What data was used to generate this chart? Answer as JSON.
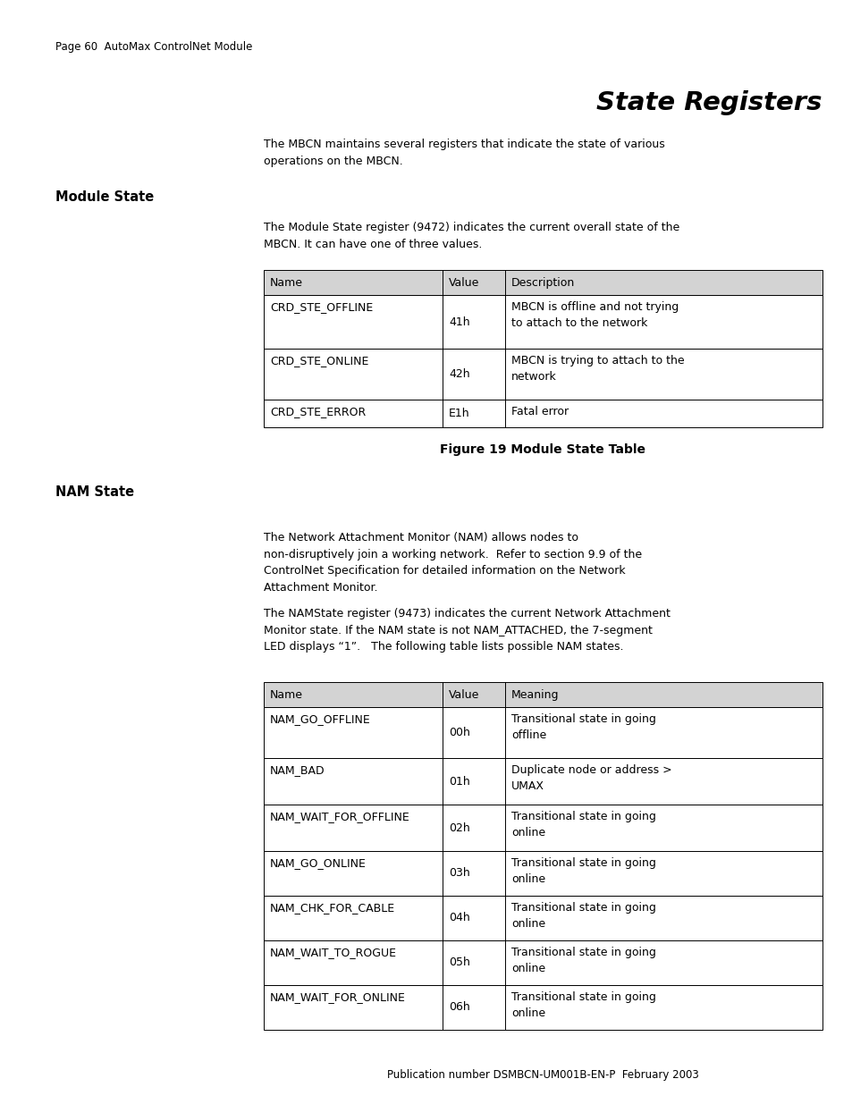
{
  "page_header": "Page 60  AutoMax ControlNet Module",
  "title": "State Registers",
  "intro_text": "The MBCN maintains several registers that indicate the state of various\noperations on the MBCN.",
  "section1_header": "Module State",
  "section1_text": "The Module State register (9472) indicates the current overall state of the\nMBCN. It can have one of three values.",
  "table1_caption": "Figure 19 Module State Table",
  "table1_headers": [
    "Name",
    "Value",
    "Description"
  ],
  "table1_rows": [
    [
      "CRD_STE_OFFLINE",
      "41h",
      "MBCN is offline and not trying\nto attach to the network"
    ],
    [
      "CRD_STE_ONLINE",
      "42h",
      "MBCN is trying to attach to the\nnetwork"
    ],
    [
      "CRD_STE_ERROR",
      "E1h",
      "Fatal error"
    ]
  ],
  "section2_header": "NAM State",
  "section2_text1": "The Network Attachment Monitor (NAM) allows nodes to\nnon-disruptively join a working network.  Refer to section 9.9 of the\nControlNet Specification for detailed information on the Network\nAttachment Monitor.",
  "section2_text2": "The NAMState register (9473) indicates the current Network Attachment\nMonitor state. If the NAM state is not NAM_ATTACHED, the 7-segment\nLED displays “1”.   The following table lists possible NAM states.",
  "table2_headers": [
    "Name",
    "Value",
    "Meaning"
  ],
  "table2_rows": [
    [
      "NAM_GO_OFFLINE",
      "00h",
      "Transitional state in going\noffline"
    ],
    [
      "NAM_BAD",
      "01h",
      "Duplicate node or address >\nUMAX"
    ],
    [
      "NAM_WAIT_FOR_OFFLINE",
      "02h",
      "Transitional state in going\nonline"
    ],
    [
      "NAM_GO_ONLINE",
      "03h",
      "Transitional state in going\nonline"
    ],
    [
      "NAM_CHK_FOR_CABLE",
      "04h",
      "Transitional state in going\nonline"
    ],
    [
      "NAM_WAIT_TO_ROGUE",
      "05h",
      "Transitional state in going\nonline"
    ],
    [
      "NAM_WAIT_FOR_ONLINE",
      "06h",
      "Transitional state in going\nonline"
    ]
  ],
  "footer": "Publication number DSMBCN-UM001B-EN-P  February 2003",
  "bg_color": "#ffffff",
  "header_bg": "#d3d3d3",
  "border_color": "#000000",
  "text_color": "#000000"
}
